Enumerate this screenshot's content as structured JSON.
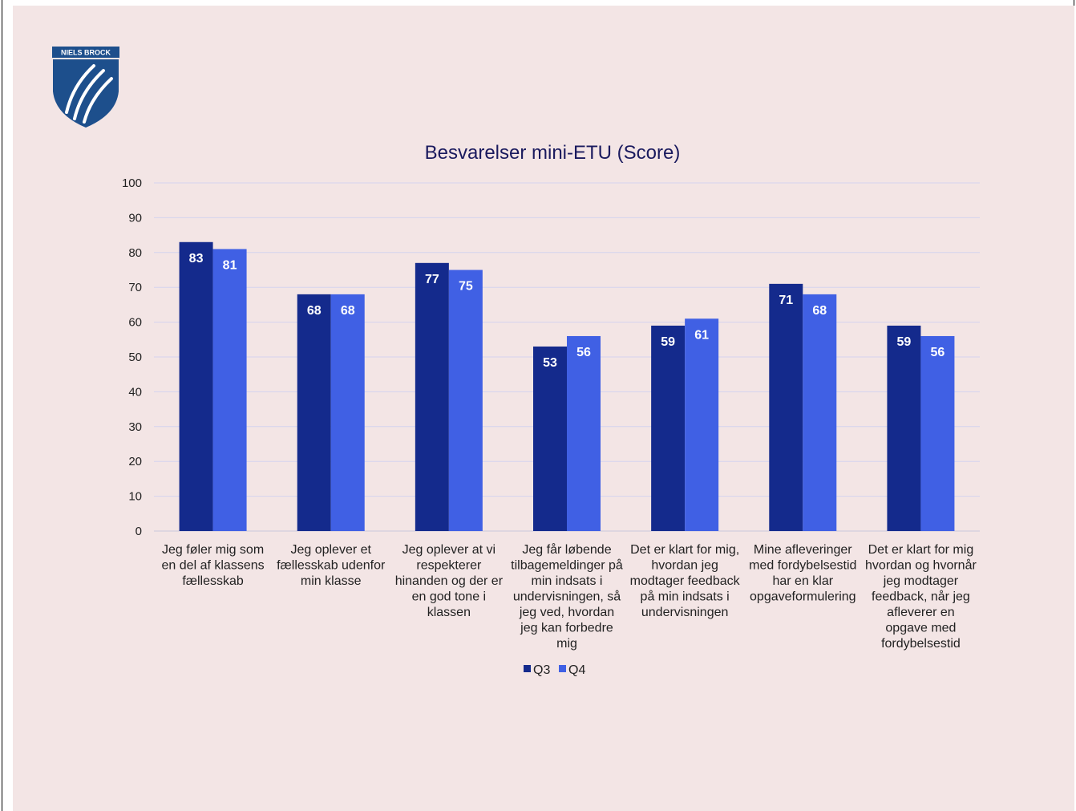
{
  "logo": {
    "text": "NIELS BROCK",
    "icon": "niels-brock-shield-logo"
  },
  "chart_data": {
    "type": "bar",
    "title": "Besvarelser mini-ETU (Score)",
    "xlabel": "",
    "ylabel": "",
    "ylim": [
      0,
      100
    ],
    "yticks": [
      0,
      10,
      20,
      30,
      40,
      50,
      60,
      70,
      80,
      90,
      100
    ],
    "grid": true,
    "legend_position": "bottom",
    "categories": [
      [
        "Jeg føler mig som",
        "en del af klassens",
        "fællesskab"
      ],
      [
        "Jeg oplever et",
        "fællesskab udenfor",
        "min klasse"
      ],
      [
        "Jeg oplever at vi",
        "respekterer",
        "hinanden og der er",
        "en god tone i",
        "klassen"
      ],
      [
        "Jeg får løbende",
        "tilbagemeldinger på",
        "min indsats i",
        "undervisningen, så",
        "jeg ved, hvordan",
        "jeg kan forbedre",
        "mig"
      ],
      [
        "Det er klart for mig,",
        "hvordan jeg",
        "modtager feedback",
        "på min indsats i",
        "undervisningen"
      ],
      [
        "Mine afleveringer",
        "med fordybelsestid",
        "har en klar",
        "opgaveformulering"
      ],
      [
        "Det er klart for mig",
        "hvordan og hvornår",
        "jeg modtager",
        "feedback, når jeg",
        "afleverer en",
        "opgave med",
        "fordybelsestid"
      ]
    ],
    "series": [
      {
        "name": "Q3",
        "color": "#142a8c",
        "values": [
          83,
          68,
          77,
          53,
          59,
          71,
          59
        ]
      },
      {
        "name": "Q4",
        "color": "#4060e4",
        "values": [
          81,
          68,
          75,
          56,
          61,
          68,
          56
        ]
      }
    ],
    "colors": {
      "grid": "#d4d4ee",
      "axis": "#c8c8dc"
    }
  }
}
